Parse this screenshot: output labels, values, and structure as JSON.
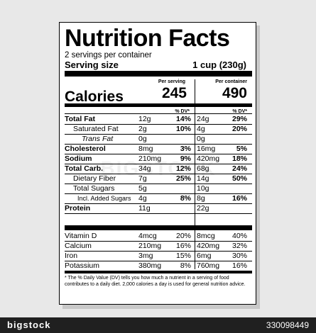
{
  "label": {
    "title": "Nutrition Facts",
    "servings_per_container": "2 servings per container",
    "serving_size_label": "Serving size",
    "serving_size_value": "1 cup (230g)",
    "calories_label": "Calories",
    "per_serving_label": "Per serving",
    "per_container_label": "Per container",
    "calories_per_serving": "245",
    "calories_per_container": "490",
    "dv_header": "% DV*",
    "rows": [
      {
        "name": "Total Fat",
        "amt1": "12g",
        "dv1": "14%",
        "amt2": "24g",
        "dv2": "29%"
      },
      {
        "name": "Saturated Fat",
        "amt1": "2g",
        "dv1": "10%",
        "amt2": "4g",
        "dv2": "20%"
      },
      {
        "name": "Trans Fat",
        "amt1": "0g",
        "dv1": "",
        "amt2": "0g",
        "dv2": ""
      },
      {
        "name": "Cholesterol",
        "amt1": "8mg",
        "dv1": "3%",
        "amt2": "16mg",
        "dv2": "5%"
      },
      {
        "name": "Sodium",
        "amt1": "210mg",
        "dv1": "9%",
        "amt2": "420mg",
        "dv2": "18%"
      },
      {
        "name": "Total Carb.",
        "amt1": "34g",
        "dv1": "12%",
        "amt2": "68g",
        "dv2": "24%"
      },
      {
        "name": "Dietary Fiber",
        "amt1": "7g",
        "dv1": "25%",
        "amt2": "14g",
        "dv2": "50%"
      },
      {
        "name": "Total Sugars",
        "amt1": "5g",
        "dv1": "",
        "amt2": "10g",
        "dv2": ""
      },
      {
        "name": "Incl. Added Sugars",
        "amt1": "4g",
        "dv1": "8%",
        "amt2": "8g",
        "dv2": "16%"
      },
      {
        "name": "Protein",
        "amt1": "11g",
        "dv1": "",
        "amt2": "22g",
        "dv2": ""
      }
    ],
    "vitamins": [
      {
        "name": "Vitamin D",
        "amt1": "4mcg",
        "dv1": "20%",
        "amt2": "8mcg",
        "dv2": "40%"
      },
      {
        "name": "Calcium",
        "amt1": "210mg",
        "dv1": "16%",
        "amt2": "420mg",
        "dv2": "32%"
      },
      {
        "name": "Iron",
        "amt1": "3mg",
        "dv1": "15%",
        "amt2": "6mg",
        "dv2": "30%"
      },
      {
        "name": "Potassium",
        "amt1": "380mg",
        "dv1": "8%",
        "amt2": "760mg",
        "dv2": "16%"
      }
    ],
    "footnote": "* The % Daily Value (DV) tells you how much a nutrient in a serving of food contributes to a daily diet. 2,000 calories a day is used for general nutrition advice."
  },
  "watermark": "BIGSTOCK",
  "stock_strip": {
    "logo": "bigstock",
    "image_id": "330098449"
  }
}
